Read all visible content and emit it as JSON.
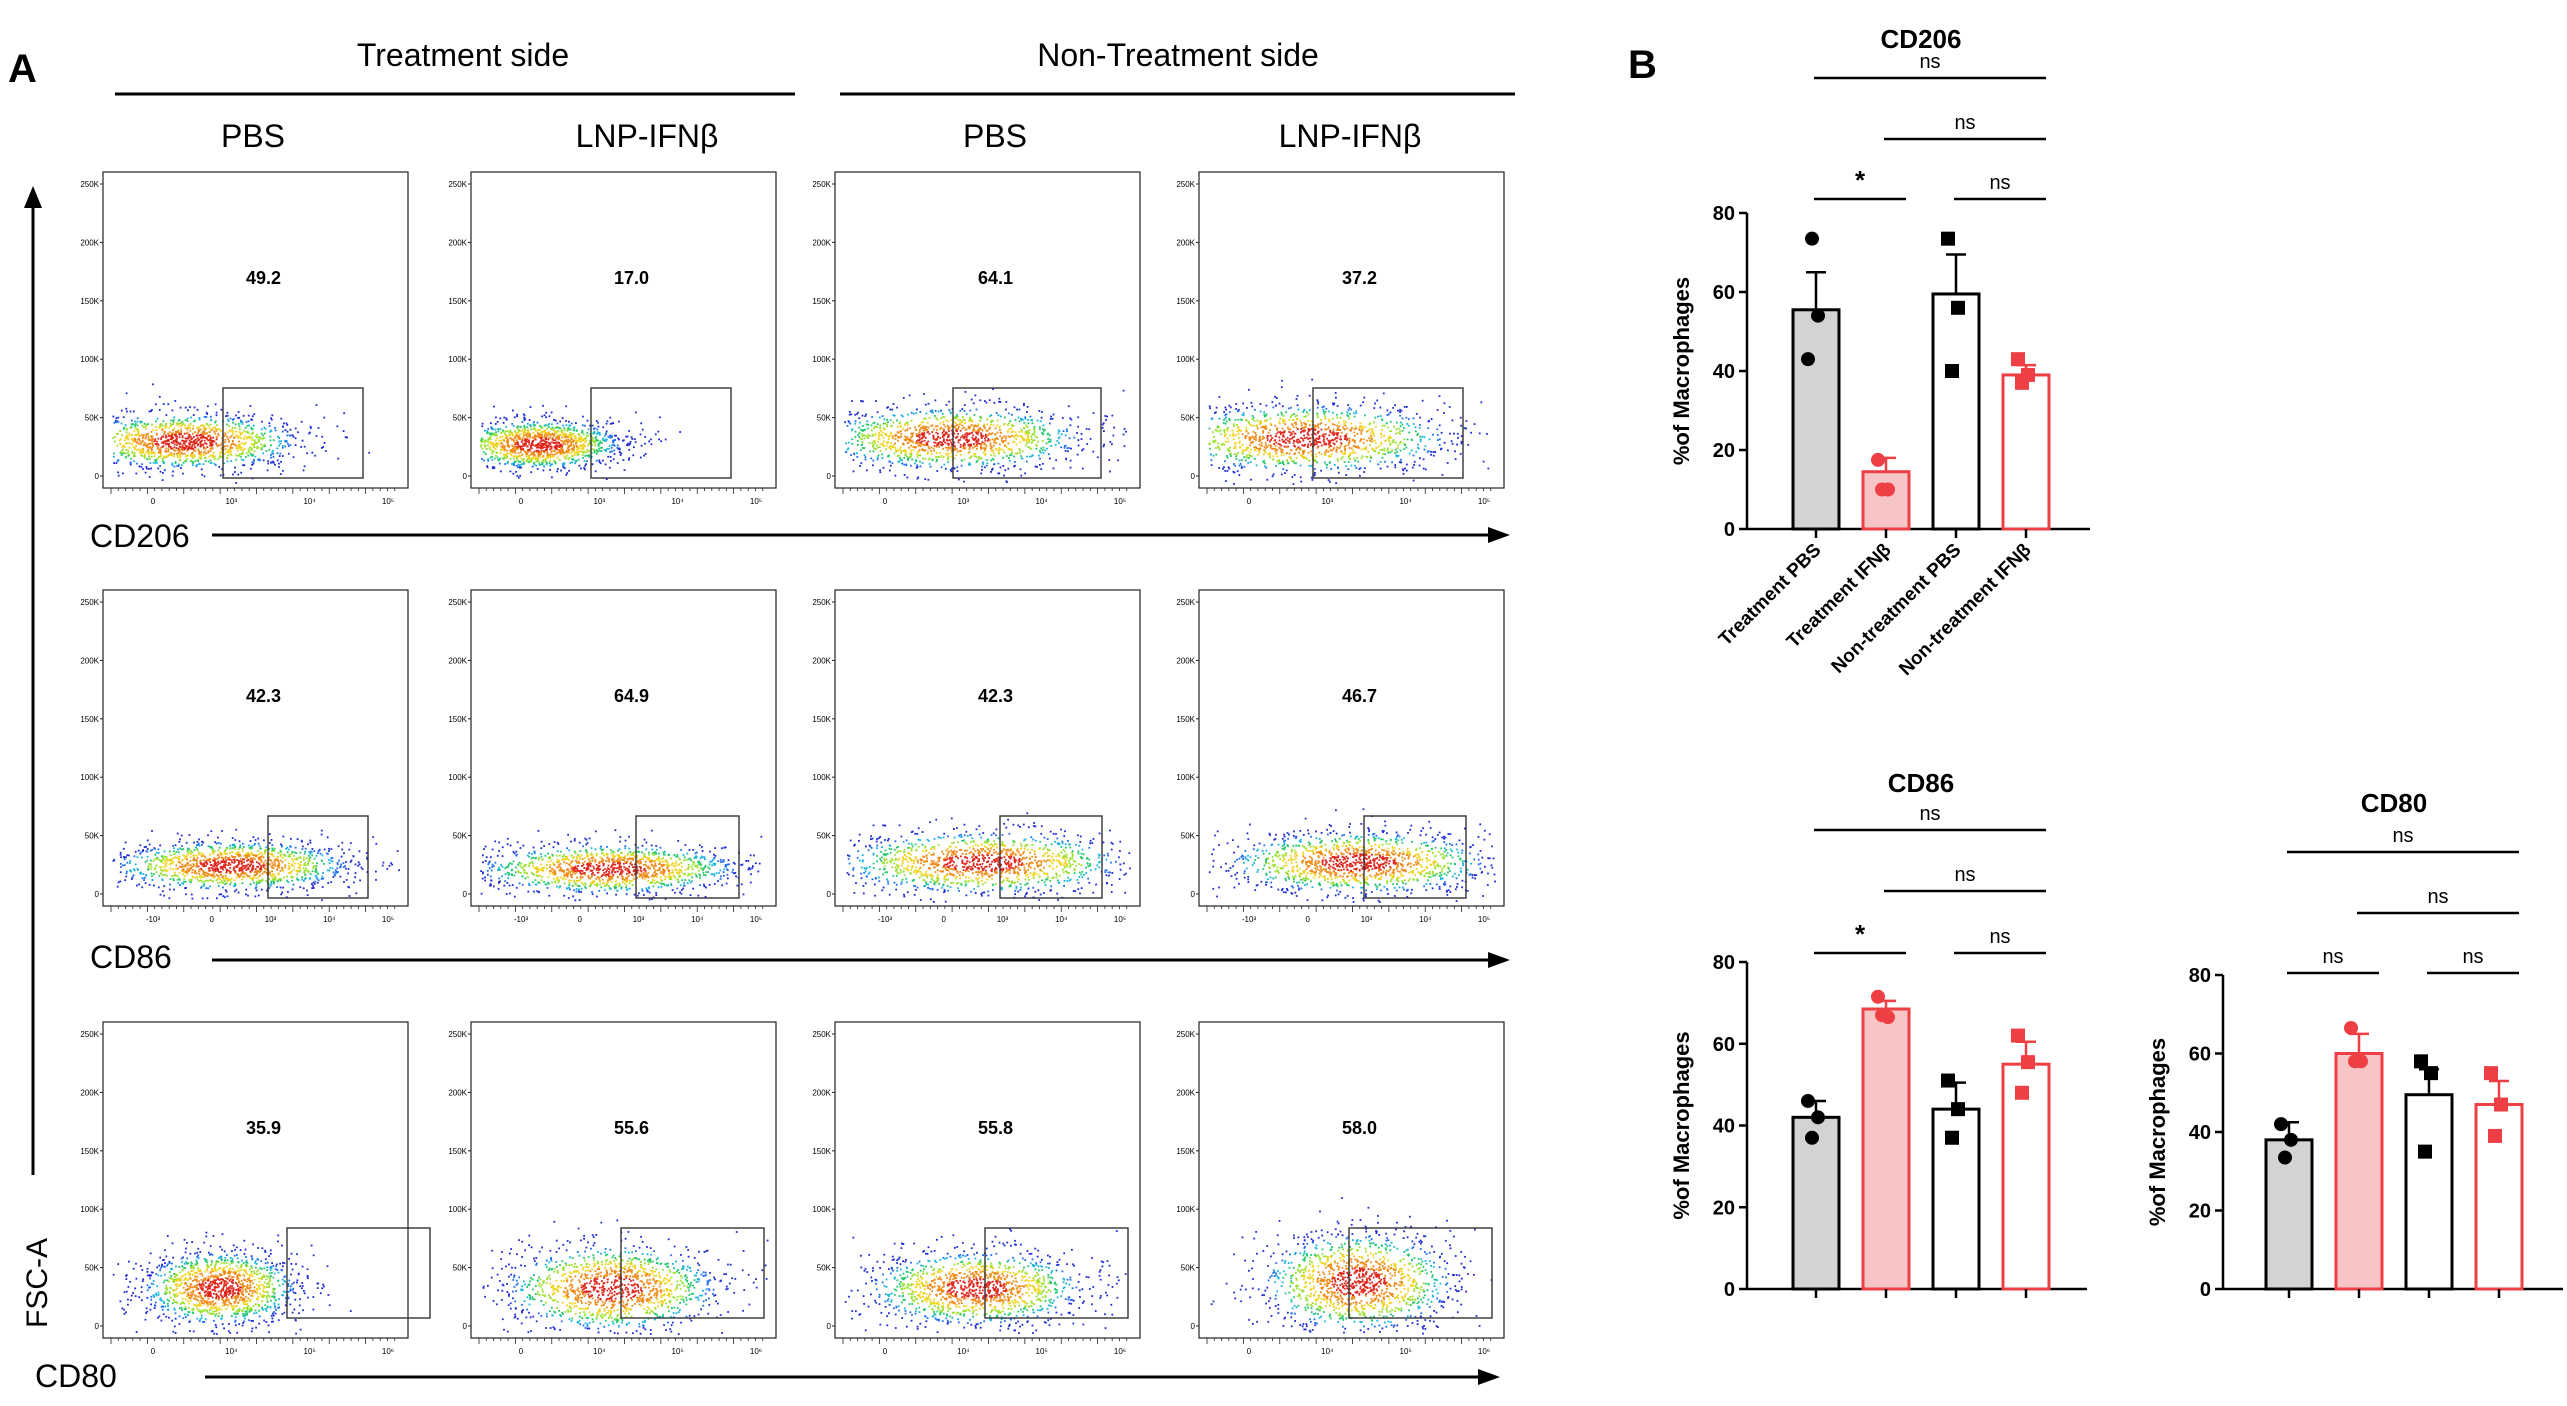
{
  "panels": {
    "a_label": "A",
    "b_label": "B"
  },
  "flow": {
    "groups": [
      "Treatment side",
      "Non-Treatment side"
    ],
    "conditions": [
      "PBS",
      "LNP-IFNβ",
      "PBS",
      "LNP-IFNβ"
    ],
    "y_axis_label": "FSC-A",
    "y_ticks": [
      "250K",
      "200K",
      "150K",
      "100K",
      "50K",
      "0"
    ],
    "rows": [
      {
        "marker": "CD206",
        "gate_values": [
          "49.2",
          "17.0",
          "64.1",
          "37.2"
        ],
        "x_ticks": [
          "0",
          "10³",
          "10⁴",
          "10⁵"
        ]
      },
      {
        "marker": "CD86",
        "gate_values": [
          "42.3",
          "64.9",
          "42.3",
          "46.7"
        ],
        "x_ticks": [
          "-10³",
          "0",
          "10³",
          "10⁴",
          "10⁵"
        ]
      },
      {
        "marker": "CD80",
        "gate_values": [
          "35.9",
          "55.6",
          "55.8",
          "58.0"
        ],
        "x_ticks": [
          "0",
          "10⁴",
          "10⁵",
          "10⁶"
        ]
      }
    ]
  },
  "colors": {
    "gray_bar": "#d3d3d3",
    "red": "#ee3f45",
    "pink_fill": "#f8c5c6",
    "black": "#000000"
  },
  "chart_data": [
    {
      "type": "bar",
      "title": "CD206",
      "ylabel": "%of Macrophages",
      "ylim": [
        0,
        80
      ],
      "yticks": [
        0,
        20,
        40,
        60,
        80
      ],
      "categories": [
        "Treatment PBS",
        "Treatment IFNβ",
        "Non-treatment PBS",
        "Non-treatment IFNβ"
      ],
      "show_category_labels": true,
      "values": [
        55.5,
        14.5,
        59.5,
        39
      ],
      "errors": [
        9.5,
        3.5,
        10,
        2.5
      ],
      "points": [
        [
          43,
          54,
          73.5
        ],
        [
          17.5,
          10,
          10
        ],
        [
          73.5,
          56,
          40
        ],
        [
          43,
          39,
          37
        ]
      ],
      "point_shapes": [
        "circle",
        "circle",
        "square",
        "square"
      ],
      "comparisons": [
        {
          "a": 0,
          "b": 3,
          "label": "ns"
        },
        {
          "a": 1,
          "b": 3,
          "label": "ns"
        },
        {
          "a": 0,
          "b": 1,
          "label": "*"
        },
        {
          "a": 2,
          "b": 3,
          "label": "ns"
        }
      ]
    },
    {
      "type": "bar",
      "title": "CD86",
      "ylabel": "%of Macrophages",
      "ylim": [
        0,
        80
      ],
      "yticks": [
        0,
        20,
        40,
        60,
        80
      ],
      "categories": [
        "Treatment PBS",
        "Treatment IFNβ",
        "Non-treatment PBS",
        "Non-treatment IFNβ"
      ],
      "show_category_labels": false,
      "values": [
        42,
        68.5,
        44,
        55
      ],
      "errors": [
        4,
        2,
        6.5,
        5.5
      ],
      "points": [
        [
          46,
          42,
          37
        ],
        [
          71.5,
          66.5,
          67
        ],
        [
          51,
          44,
          37
        ],
        [
          62,
          55.5,
          48
        ]
      ],
      "point_shapes": [
        "circle",
        "circle",
        "square",
        "square"
      ],
      "comparisons": [
        {
          "a": 0,
          "b": 3,
          "label": "ns"
        },
        {
          "a": 1,
          "b": 3,
          "label": "ns"
        },
        {
          "a": 0,
          "b": 1,
          "label": "*"
        },
        {
          "a": 2,
          "b": 3,
          "label": "ns"
        }
      ]
    },
    {
      "type": "bar",
      "title": "CD80",
      "ylabel": "%of Macrophages",
      "ylim": [
        0,
        80
      ],
      "yticks": [
        0,
        20,
        40,
        60,
        80
      ],
      "categories": [
        "Treatment PBS",
        "Treatment IFNβ",
        "Non-treatment PBS",
        "Non-treatment IFNβ"
      ],
      "show_category_labels": false,
      "values": [
        38,
        60,
        49.5,
        47
      ],
      "errors": [
        4.5,
        5,
        6.5,
        6
      ],
      "points": [
        [
          42,
          38,
          33.5
        ],
        [
          66.5,
          58,
          58
        ],
        [
          58,
          55,
          35
        ],
        [
          55,
          47,
          39
        ]
      ],
      "point_shapes": [
        "circle",
        "circle",
        "square",
        "square"
      ],
      "comparisons": [
        {
          "a": 0,
          "b": 3,
          "label": "ns"
        },
        {
          "a": 1,
          "b": 3,
          "label": "ns"
        },
        {
          "a": 0,
          "b": 1,
          "label": "ns"
        },
        {
          "a": 2,
          "b": 3,
          "label": "ns"
        }
      ]
    }
  ]
}
